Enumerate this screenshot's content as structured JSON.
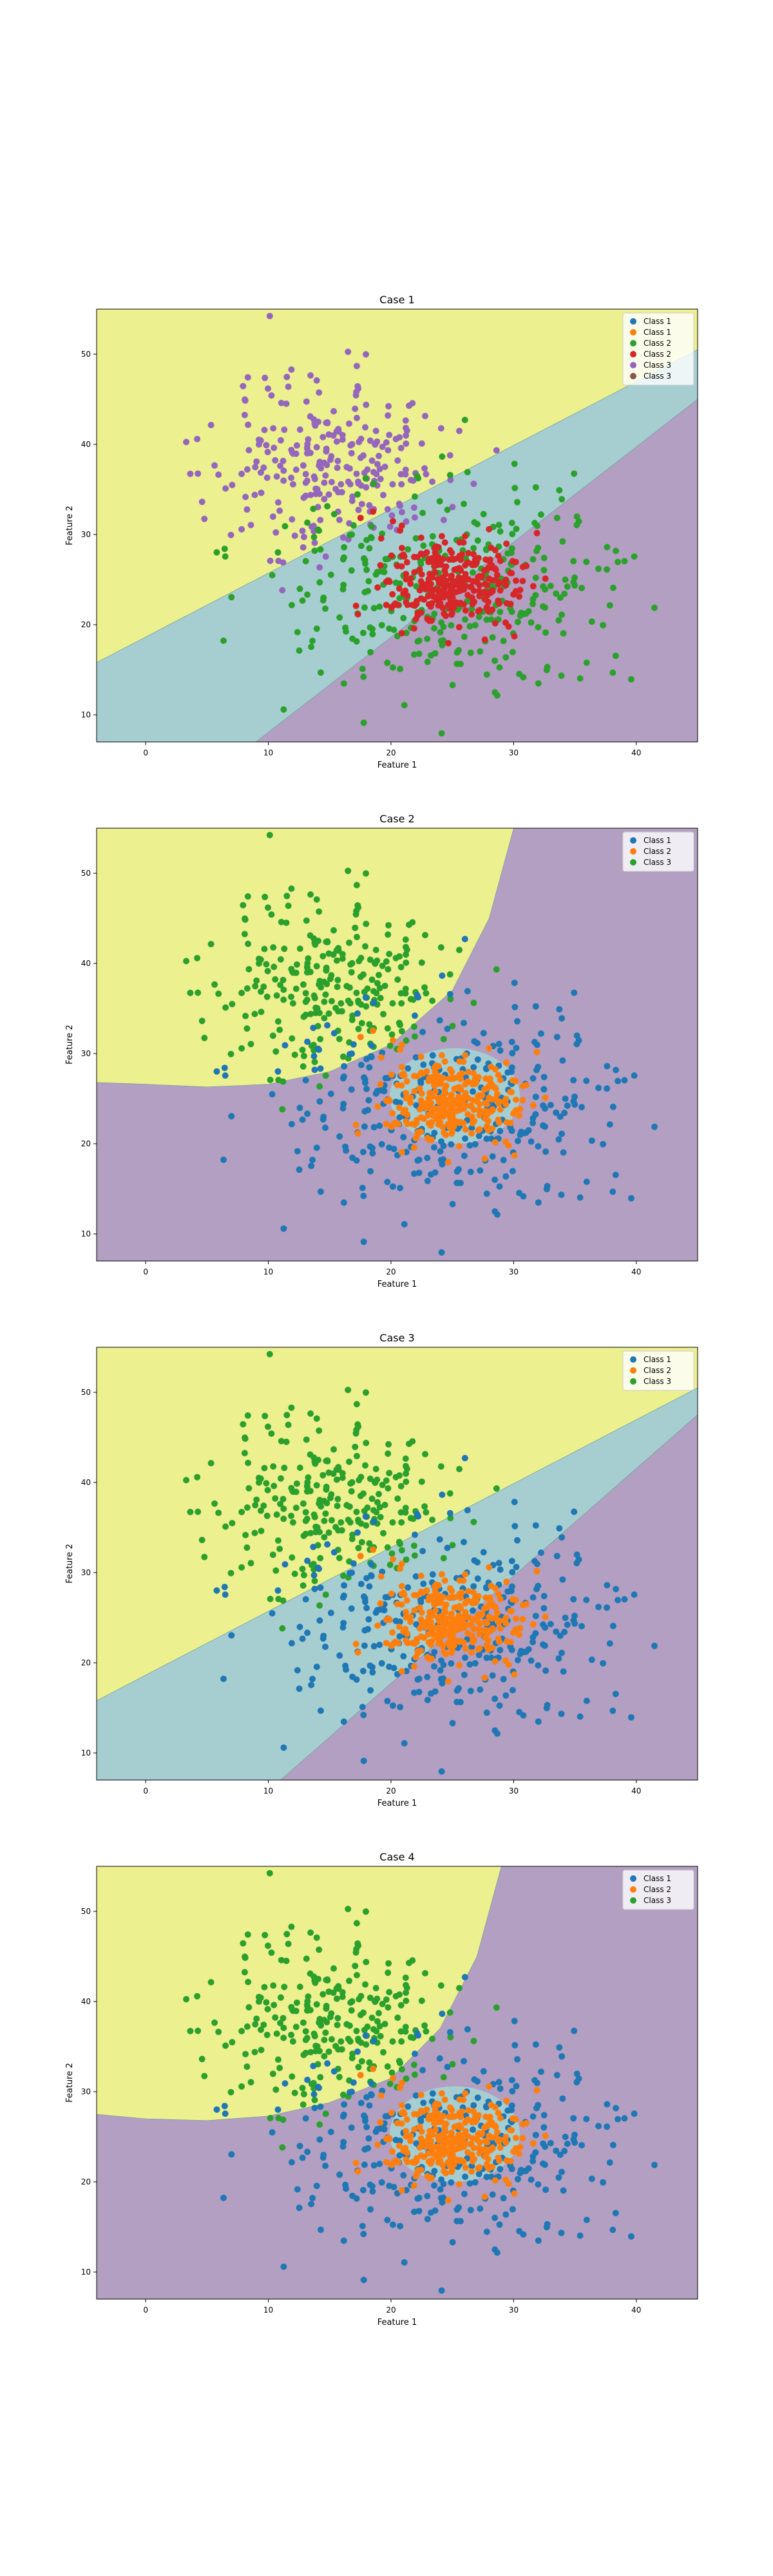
{
  "colors": {
    "region_yellow": "#ecf08f",
    "region_teal": "#a6ced1",
    "region_purple": "#b29fc2",
    "tab_blue": "#1f77b4",
    "tab_orange": "#ff7f0e",
    "tab_green": "#2ca02c",
    "tab_red": "#d62728",
    "tab_purple": "#9467bd",
    "tab_brown": "#8c564b"
  },
  "chart_data": [
    {
      "type": "scatter",
      "title": "Case 1",
      "xlabel": "Feature 1",
      "ylabel": "Feature 2",
      "xlim": [
        -4,
        45
      ],
      "ylim": [
        7,
        55
      ],
      "xticks": [
        0,
        10,
        20,
        30,
        40
      ],
      "yticks": [
        10,
        20,
        30,
        40,
        50
      ],
      "legend_position": "top-right",
      "legend": [
        {
          "label": "Class 1",
          "color": "#1f77b4"
        },
        {
          "label": "Class 1",
          "color": "#ff7f0e"
        },
        {
          "label": "Class 2",
          "color": "#2ca02c"
        },
        {
          "label": "Class 2",
          "color": "#d62728"
        },
        {
          "label": "Class 3",
          "color": "#9467bd"
        },
        {
          "label": "Class 3",
          "color": "#8c564b"
        }
      ],
      "clusters": [
        {
          "center": [
            15,
            38
          ],
          "spread": [
            5,
            5
          ],
          "count": 260,
          "color": "#9467bd"
        },
        {
          "center": [
            25,
            24
          ],
          "spread": [
            7,
            5.5
          ],
          "count": 340,
          "color": "#2ca02c"
        },
        {
          "center": [
            25,
            25
          ],
          "spread": [
            3,
            2.5
          ],
          "count": 300,
          "color": "#d62728"
        }
      ],
      "regions": [
        {
          "color": "#ecf08f",
          "polygon": [
            [
              -4,
              15.8
            ],
            [
              45,
              50.5
            ],
            [
              45,
              55
            ],
            [
              -4,
              55
            ]
          ]
        },
        {
          "color": "#a6ced1",
          "polygon": [
            [
              -4,
              7
            ],
            [
              9,
              7
            ],
            [
              45,
              45
            ],
            [
              45,
              50.5
            ],
            [
              -4,
              15.8
            ]
          ]
        },
        {
          "color": "#b29fc2",
          "polygon": [
            [
              9,
              7
            ],
            [
              45,
              7
            ],
            [
              45,
              45
            ]
          ]
        }
      ]
    },
    {
      "type": "scatter",
      "title": "Case 2",
      "xlabel": "Feature 1",
      "ylabel": "Feature 2",
      "xlim": [
        -4,
        45
      ],
      "ylim": [
        7,
        55
      ],
      "xticks": [
        0,
        10,
        20,
        30,
        40
      ],
      "yticks": [
        10,
        20,
        30,
        40,
        50
      ],
      "legend_position": "top-right",
      "legend": [
        {
          "label": "Class 1",
          "color": "#1f77b4"
        },
        {
          "label": "Class 2",
          "color": "#ff7f0e"
        },
        {
          "label": "Class 3",
          "color": "#2ca02c"
        }
      ],
      "clusters": [
        {
          "center": [
            15,
            38
          ],
          "spread": [
            5,
            5
          ],
          "count": 260,
          "color": "#2ca02c"
        },
        {
          "center": [
            25,
            24
          ],
          "spread": [
            7,
            5.5
          ],
          "count": 340,
          "color": "#1f77b4"
        },
        {
          "center": [
            25,
            25
          ],
          "spread": [
            3,
            2.5
          ],
          "count": 300,
          "color": "#ff7f0e"
        }
      ],
      "regions": [
        {
          "color": "#ecf08f",
          "polygon": [
            [
              -4,
              26.8
            ],
            [
              0,
              26.6
            ],
            [
              5,
              26.3
            ],
            [
              10,
              26.6
            ],
            [
              15,
              28
            ],
            [
              20,
              31
            ],
            [
              25,
              37
            ],
            [
              28,
              45
            ],
            [
              30,
              55
            ],
            [
              -4,
              55
            ]
          ]
        },
        {
          "color": "#a6ced1",
          "ellipse": {
            "cx": 25.2,
            "cy": 25.3,
            "rx": 5.3,
            "ry": 5.3
          }
        }
      ]
    },
    {
      "type": "scatter",
      "title": "Case 3",
      "xlabel": "Feature 1",
      "ylabel": "Feature 2",
      "xlim": [
        -4,
        45
      ],
      "ylim": [
        7,
        55
      ],
      "xticks": [
        0,
        10,
        20,
        30,
        40
      ],
      "yticks": [
        10,
        20,
        30,
        40,
        50
      ],
      "legend_position": "top-right",
      "legend": [
        {
          "label": "Class 1",
          "color": "#1f77b4"
        },
        {
          "label": "Class 2",
          "color": "#ff7f0e"
        },
        {
          "label": "Class 3",
          "color": "#2ca02c"
        }
      ],
      "clusters": [
        {
          "center": [
            15,
            38
          ],
          "spread": [
            5,
            5
          ],
          "count": 260,
          "color": "#2ca02c"
        },
        {
          "center": [
            25,
            24
          ],
          "spread": [
            7,
            5.5
          ],
          "count": 340,
          "color": "#1f77b4"
        },
        {
          "center": [
            25,
            25
          ],
          "spread": [
            3,
            2.5
          ],
          "count": 300,
          "color": "#ff7f0e"
        }
      ],
      "regions": [
        {
          "color": "#ecf08f",
          "polygon": [
            [
              -4,
              15.8
            ],
            [
              45,
              50.5
            ],
            [
              45,
              55
            ],
            [
              -4,
              55
            ]
          ]
        },
        {
          "color": "#a6ced1",
          "polygon": [
            [
              -4,
              7
            ],
            [
              11,
              7
            ],
            [
              45,
              47.5
            ],
            [
              45,
              50.5
            ],
            [
              -4,
              15.8
            ]
          ]
        },
        {
          "color": "#b29fc2",
          "polygon": [
            [
              11,
              7
            ],
            [
              45,
              7
            ],
            [
              45,
              47.5
            ]
          ]
        }
      ]
    },
    {
      "type": "scatter",
      "title": "Case 4",
      "xlabel": "Feature 1",
      "ylabel": "Feature 2",
      "xlim": [
        -4,
        45
      ],
      "ylim": [
        7,
        55
      ],
      "xticks": [
        0,
        10,
        20,
        30,
        40
      ],
      "yticks": [
        10,
        20,
        30,
        40,
        50
      ],
      "legend_position": "top-right",
      "legend": [
        {
          "label": "Class 1",
          "color": "#1f77b4"
        },
        {
          "label": "Class 2",
          "color": "#ff7f0e"
        },
        {
          "label": "Class 3",
          "color": "#2ca02c"
        }
      ],
      "clusters": [
        {
          "center": [
            15,
            38
          ],
          "spread": [
            5,
            5
          ],
          "count": 260,
          "color": "#2ca02c"
        },
        {
          "center": [
            25,
            24
          ],
          "spread": [
            7,
            5.5
          ],
          "count": 340,
          "color": "#1f77b4"
        },
        {
          "center": [
            25,
            25
          ],
          "spread": [
            3,
            2.5
          ],
          "count": 300,
          "color": "#ff7f0e"
        }
      ],
      "regions": [
        {
          "color": "#ecf08f",
          "polygon": [
            [
              -4,
              27.5
            ],
            [
              0,
              27
            ],
            [
              5,
              26.8
            ],
            [
              10,
              27.3
            ],
            [
              15,
              28.8
            ],
            [
              20,
              31.5
            ],
            [
              24,
              37
            ],
            [
              27,
              45
            ],
            [
              29,
              55
            ],
            [
              -4,
              55
            ]
          ]
        },
        {
          "color": "#a6ced1",
          "ellipse": {
            "cx": 25.2,
            "cy": 25.3,
            "rx": 5.3,
            "ry": 5.3
          }
        }
      ]
    }
  ]
}
